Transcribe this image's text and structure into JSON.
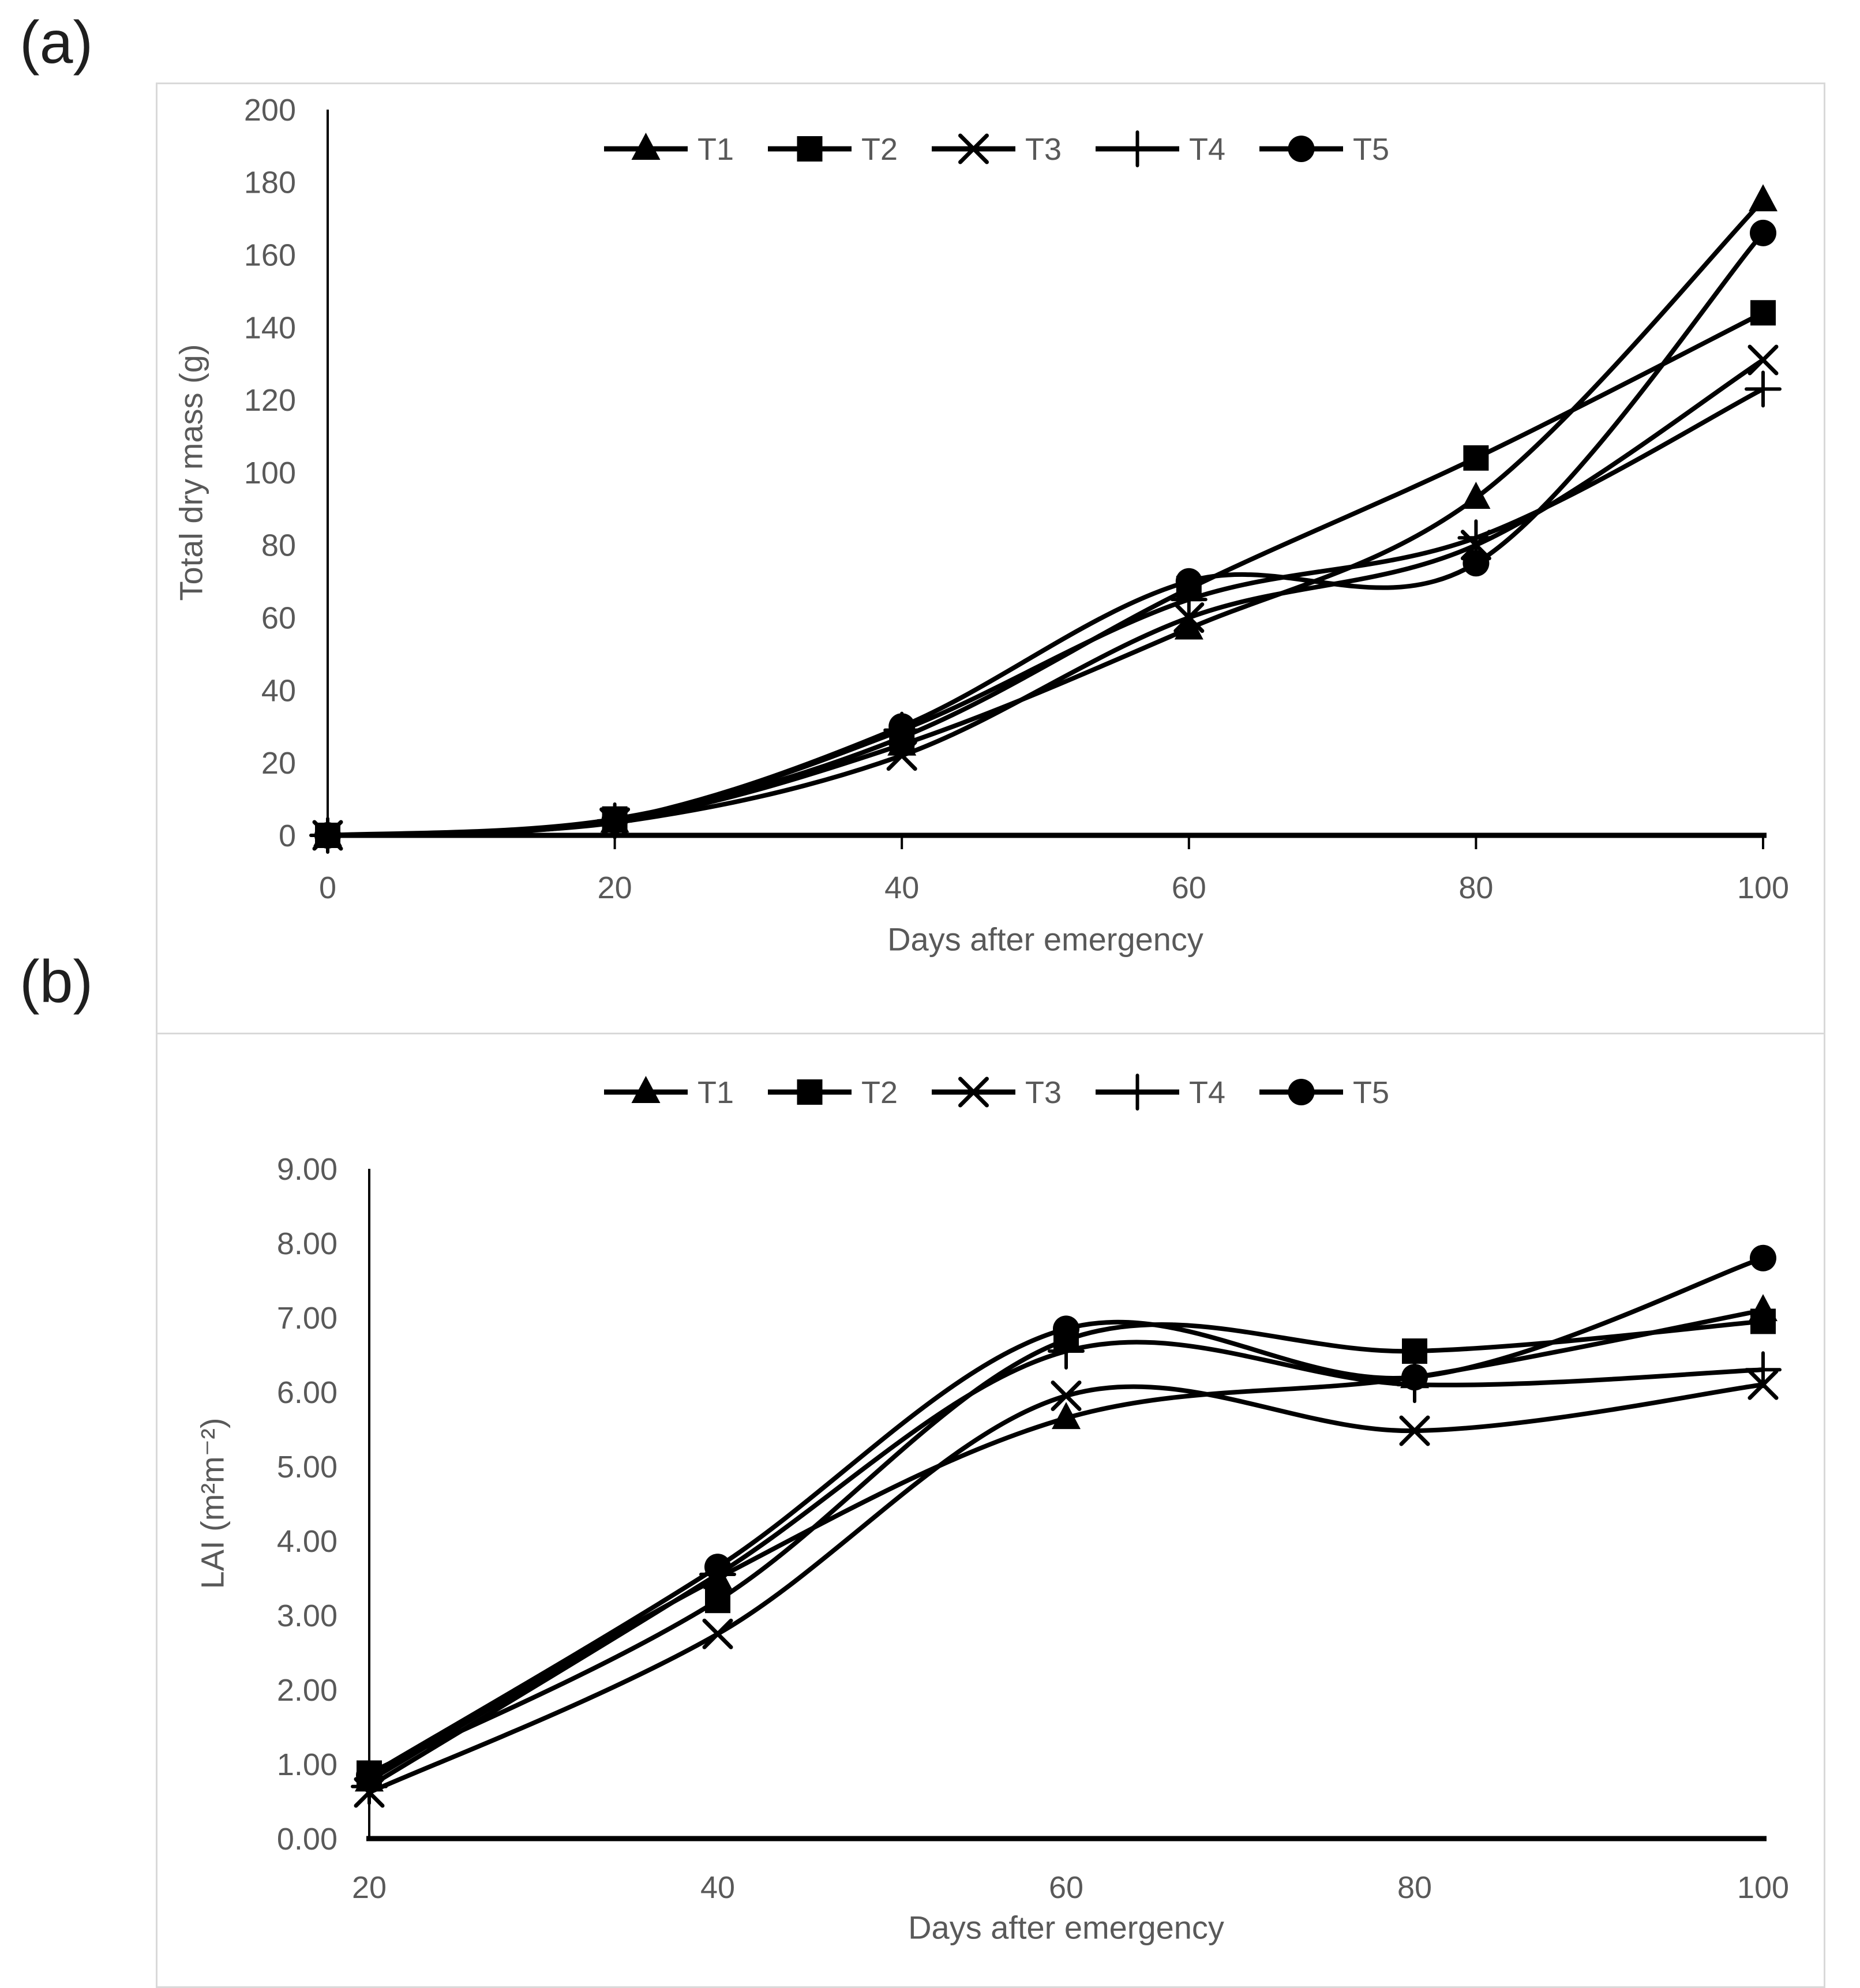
{
  "page": {
    "panel_a_label": "(a)",
    "panel_b_label": "(b)"
  },
  "colors": {
    "series": "#000000",
    "axis": "#000000",
    "text": "#595959",
    "panel_border": "#d9d9d9"
  },
  "chart_data": [
    {
      "id": "a",
      "type": "line",
      "title": "",
      "xlabel": "Days after emergency",
      "ylabel": "Total dry mass (g)",
      "x": [
        0,
        20,
        40,
        60,
        80,
        100
      ],
      "xlim": [
        0,
        100
      ],
      "ylim": [
        0,
        200
      ],
      "ytick_step": 20,
      "ytick_decimals": 0,
      "grid": false,
      "legend_position": "top",
      "legend": [
        "T1",
        "T2",
        "T3",
        "T4",
        "T5"
      ],
      "series": [
        {
          "name": "T1",
          "marker": "triangle",
          "values": [
            0,
            3.8,
            25,
            57,
            93,
            175
          ]
        },
        {
          "name": "T2",
          "marker": "square",
          "values": [
            0,
            4.5,
            27,
            68,
            104,
            144
          ]
        },
        {
          "name": "T3",
          "marker": "x",
          "values": [
            0,
            3.5,
            22,
            60,
            80,
            131
          ]
        },
        {
          "name": "T4",
          "marker": "plus",
          "values": [
            0,
            4.0,
            29,
            65,
            82,
            123
          ]
        },
        {
          "name": "T5",
          "marker": "circle",
          "values": [
            0,
            4.2,
            30,
            70,
            75,
            166
          ]
        }
      ]
    },
    {
      "id": "b",
      "type": "line",
      "title": "",
      "xlabel": "Days after emergency",
      "ylabel": "LAI (m²m⁻²)",
      "x": [
        20,
        40,
        60,
        80,
        100
      ],
      "xlim": [
        20,
        100
      ],
      "ylim": [
        0,
        9
      ],
      "ytick_step": 1,
      "ytick_decimals": 2,
      "grid": false,
      "legend_position": "top",
      "legend": [
        "T1",
        "T2",
        "T3",
        "T4",
        "T5"
      ],
      "series": [
        {
          "name": "T1",
          "marker": "triangle",
          "values": [
            0.78,
            3.5,
            5.65,
            6.2,
            7.1
          ]
        },
        {
          "name": "T2",
          "marker": "square",
          "values": [
            0.88,
            3.2,
            6.7,
            6.55,
            6.95
          ]
        },
        {
          "name": "T3",
          "marker": "x",
          "values": [
            0.62,
            2.75,
            5.95,
            5.48,
            6.1
          ]
        },
        {
          "name": "T4",
          "marker": "plus",
          "values": [
            0.7,
            3.55,
            6.55,
            6.1,
            6.3
          ]
        },
        {
          "name": "T5",
          "marker": "circle",
          "values": [
            0.85,
            3.65,
            6.85,
            6.2,
            7.8
          ]
        }
      ]
    }
  ]
}
